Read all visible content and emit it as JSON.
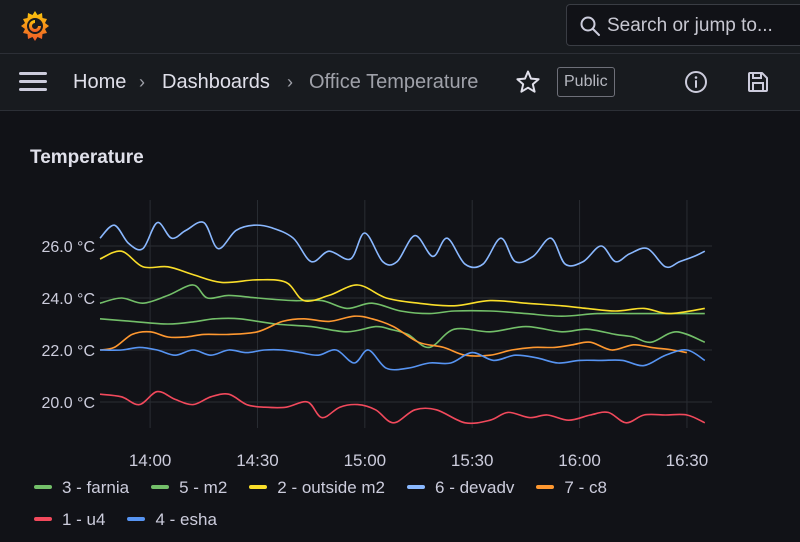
{
  "search": {
    "placeholder": "Search or jump to..."
  },
  "breadcrumb": {
    "home": "Home",
    "dashboards": "Dashboards",
    "current": "Office Temperature",
    "separator": "›"
  },
  "badge": {
    "public": "Public"
  },
  "panel": {
    "title": "Temperature"
  },
  "chart_data": {
    "type": "line",
    "y_ticks": [
      "20.0 °C",
      "22.0 °C",
      "24.0 °C",
      "26.0 °C"
    ],
    "y_tick_values": [
      20,
      22,
      24,
      26
    ],
    "ylim": [
      19.0,
      27.0
    ],
    "x_ticks": [
      "14:00",
      "14:30",
      "15:00",
      "15:30",
      "16:00",
      "16:30"
    ],
    "x_tick_values": [
      840,
      870,
      900,
      930,
      960,
      990
    ],
    "xlim": [
      826,
      997
    ],
    "grid": true,
    "legend_position": "bottom",
    "series": [
      {
        "name": "3 - farnia",
        "color": "#73bf69",
        "x": [
          826,
          835,
          845,
          853,
          858,
          865,
          875,
          885,
          895,
          903,
          907,
          912,
          918,
          925,
          935,
          945,
          955,
          962,
          970,
          975,
          980,
          987,
          995
        ],
        "y": [
          23.2,
          23.1,
          23.0,
          23.1,
          23.2,
          23.2,
          23.0,
          22.9,
          22.7,
          22.9,
          22.8,
          22.6,
          22.1,
          22.8,
          22.7,
          22.9,
          22.7,
          22.8,
          22.6,
          22.5,
          22.3,
          22.7,
          22.3
        ]
      },
      {
        "name": "5 - m2",
        "color": "#73bf69",
        "x": [
          826,
          832,
          838,
          845,
          852,
          856,
          862,
          870,
          880,
          888,
          895,
          902,
          910,
          918,
          925,
          935,
          945,
          955,
          965,
          975,
          985,
          995
        ],
        "y": [
          23.8,
          24.0,
          23.8,
          24.1,
          24.5,
          24.0,
          24.1,
          24.0,
          23.9,
          23.9,
          23.6,
          23.8,
          23.5,
          23.4,
          23.5,
          23.5,
          23.4,
          23.3,
          23.4,
          23.4,
          23.4,
          23.4
        ]
      },
      {
        "name": "2 - outside m2",
        "color": "#fade2a",
        "x": [
          826,
          832,
          838,
          845,
          852,
          860,
          870,
          878,
          883,
          890,
          898,
          906,
          915,
          925,
          935,
          945,
          955,
          962,
          970,
          978,
          985,
          995
        ],
        "y": [
          25.5,
          25.8,
          25.2,
          25.2,
          24.9,
          24.6,
          24.7,
          24.6,
          23.9,
          24.1,
          24.5,
          24.0,
          23.8,
          23.7,
          23.9,
          23.8,
          23.7,
          23.6,
          23.5,
          23.6,
          23.4,
          23.6
        ]
      },
      {
        "name": "6 - devadv",
        "color": "#8ab8ff",
        "x": [
          826,
          830,
          834,
          838,
          842,
          846,
          850,
          855,
          859,
          864,
          869,
          874,
          880,
          885,
          890,
          896,
          900,
          905,
          909,
          914,
          919,
          923,
          928,
          933,
          938,
          942,
          947,
          952,
          956,
          961,
          966,
          970,
          974,
          979,
          984,
          988,
          992,
          995
        ],
        "y": [
          26.3,
          26.8,
          26.1,
          25.9,
          26.9,
          26.3,
          26.6,
          26.9,
          25.9,
          26.6,
          26.8,
          26.7,
          26.3,
          25.4,
          25.8,
          25.5,
          26.5,
          25.4,
          25.4,
          26.4,
          25.6,
          26.3,
          25.3,
          25.3,
          26.3,
          25.4,
          25.6,
          26.3,
          25.3,
          25.4,
          26.0,
          25.4,
          25.7,
          25.9,
          25.2,
          25.4,
          25.6,
          25.8
        ]
      },
      {
        "name": "7 - c8",
        "color": "#ff9830",
        "x": [
          826,
          830,
          835,
          840,
          845,
          850,
          855,
          862,
          870,
          877,
          883,
          890,
          897,
          902,
          908,
          915,
          922,
          928,
          935,
          941,
          947,
          953,
          958,
          963,
          969,
          975,
          980,
          986,
          990
        ],
        "y": [
          22.0,
          22.1,
          22.6,
          22.7,
          22.5,
          22.5,
          22.6,
          22.6,
          22.7,
          23.1,
          23.2,
          23.1,
          23.3,
          23.2,
          22.9,
          22.3,
          22.1,
          21.8,
          21.8,
          22.0,
          22.1,
          22.1,
          22.2,
          22.3,
          22.0,
          22.2,
          22.1,
          22.0,
          21.9
        ]
      },
      {
        "name": "1 - u4",
        "color": "#f2495c",
        "x": [
          826,
          832,
          837,
          842,
          847,
          852,
          857,
          862,
          867,
          872,
          878,
          884,
          888,
          893,
          898,
          903,
          908,
          914,
          920,
          928,
          935,
          940,
          946,
          951,
          957,
          963,
          968,
          973,
          978,
          984,
          990,
          995
        ],
        "y": [
          20.3,
          20.2,
          19.9,
          20.4,
          20.1,
          19.9,
          20.2,
          20.3,
          19.9,
          19.8,
          19.8,
          20.0,
          19.4,
          19.8,
          19.9,
          19.7,
          19.2,
          19.7,
          19.7,
          19.2,
          19.3,
          19.6,
          19.4,
          19.5,
          19.3,
          19.5,
          19.6,
          19.2,
          19.5,
          19.5,
          19.5,
          19.2
        ]
      },
      {
        "name": "4 - esha",
        "color": "#5794f2",
        "x": [
          826,
          832,
          837,
          842,
          847,
          852,
          857,
          862,
          867,
          872,
          877,
          882,
          887,
          892,
          897,
          901,
          906,
          912,
          918,
          924,
          930,
          936,
          942,
          948,
          954,
          960,
          966,
          972,
          978,
          984,
          990,
          995
        ],
        "y": [
          22.0,
          22.0,
          22.1,
          22.0,
          21.8,
          22.0,
          21.8,
          22.0,
          21.9,
          22.0,
          22.0,
          21.9,
          21.8,
          22.0,
          21.5,
          22.0,
          21.3,
          21.3,
          21.5,
          21.5,
          21.9,
          21.6,
          21.8,
          21.7,
          21.5,
          21.6,
          21.6,
          21.6,
          21.4,
          21.8,
          22.0,
          21.6
        ]
      }
    ]
  },
  "legend": {
    "row1": [
      "3 - farnia",
      "5 - m2",
      "2 - outside m2",
      "6 - devadv",
      "7 - c8"
    ],
    "row2": [
      "1 - u4",
      "4 - esha"
    ]
  },
  "colors": {
    "background": "#111217",
    "topbar": "#181b1f",
    "accent": "#f46800"
  },
  "icons": [
    "grafana-logo-icon",
    "search-icon",
    "menu-icon",
    "star-icon",
    "info-icon",
    "save-icon"
  ]
}
